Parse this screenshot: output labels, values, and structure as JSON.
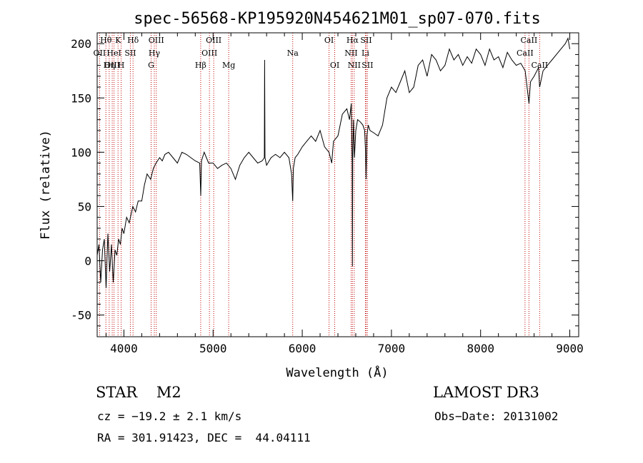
{
  "chart_data": {
    "type": "line",
    "title": "spec-56568-KP195920N454621M01_sp07-070.fits",
    "xlabel": "Wavelength (Å)",
    "ylabel": "Flux (relative)",
    "xlim": [
      3700,
      9100
    ],
    "ylim": [
      -70,
      210
    ],
    "xticks": [
      4000,
      5000,
      6000,
      7000,
      8000,
      9000
    ],
    "yticks": [
      -50,
      0,
      50,
      100,
      150,
      200
    ],
    "line_color": "#000000",
    "marker_color": "#c00000",
    "series": [
      {
        "values_note": "",
        "x": [
          3700,
          3720,
          3740,
          3760,
          3780,
          3800,
          3820,
          3840,
          3860,
          3880,
          3900,
          3920,
          3940,
          3960,
          3980,
          4000,
          4030,
          4060,
          4100,
          4130,
          4160,
          4200,
          4230,
          4260,
          4300,
          4330,
          4360,
          4400,
          4430,
          4460,
          4500,
          4550,
          4600,
          4650,
          4700,
          4750,
          4800,
          4850,
          4862,
          4870,
          4900,
          4950,
          5000,
          5050,
          5100,
          5150,
          5200,
          5250,
          5300,
          5350,
          5400,
          5450,
          5500,
          5550,
          5575,
          5578,
          5582,
          5600,
          5650,
          5700,
          5750,
          5800,
          5850,
          5880,
          5893,
          5900,
          5920,
          5950,
          6000,
          6050,
          6100,
          6150,
          6200,
          6250,
          6300,
          6330,
          6350,
          6400,
          6450,
          6500,
          6530,
          6550,
          6560,
          6563,
          6566,
          6575,
          6585,
          6600,
          6620,
          6650,
          6680,
          6700,
          6710,
          6716,
          6725,
          6740,
          6760,
          6800,
          6850,
          6900,
          6950,
          7000,
          7050,
          7100,
          7150,
          7200,
          7250,
          7300,
          7350,
          7400,
          7450,
          7500,
          7550,
          7600,
          7650,
          7700,
          7750,
          7800,
          7850,
          7900,
          7950,
          8000,
          8050,
          8100,
          8150,
          8200,
          8250,
          8300,
          8350,
          8400,
          8450,
          8500,
          8542,
          8560,
          8600,
          8650,
          8662,
          8700,
          8750,
          8800,
          8850,
          8900,
          8950,
          8980,
          9000
        ],
        "y": [
          5,
          15,
          -20,
          10,
          20,
          -25,
          25,
          -10,
          15,
          -20,
          10,
          5,
          20,
          15,
          30,
          25,
          40,
          35,
          50,
          45,
          55,
          55,
          70,
          80,
          75,
          85,
          90,
          95,
          92,
          98,
          100,
          95,
          90,
          100,
          98,
          95,
          92,
          90,
          60,
          92,
          100,
          90,
          90,
          85,
          88,
          90,
          85,
          75,
          88,
          95,
          100,
          95,
          90,
          92,
          95,
          185,
          95,
          88,
          95,
          98,
          95,
          100,
          95,
          80,
          55,
          85,
          95,
          98,
          105,
          110,
          115,
          110,
          120,
          105,
          100,
          90,
          110,
          115,
          135,
          140,
          130,
          145,
          90,
          -5,
          95,
          130,
          95,
          120,
          130,
          128,
          125,
          120,
          100,
          75,
          115,
          125,
          120,
          118,
          115,
          125,
          150,
          160,
          155,
          165,
          175,
          155,
          160,
          180,
          185,
          170,
          190,
          185,
          175,
          180,
          195,
          185,
          190,
          180,
          188,
          182,
          195,
          190,
          180,
          195,
          185,
          188,
          178,
          192,
          185,
          180,
          182,
          175,
          145,
          165,
          170,
          178,
          160,
          175,
          180,
          185,
          190,
          195,
          200,
          205,
          195
        ]
      }
    ],
    "lines": [
      {
        "name": "Hθ",
        "x": 3798,
        "row": 0
      },
      {
        "name": "OII",
        "x": 3727,
        "row": 1
      },
      {
        "name": "OIII",
        "x": 3869,
        "row": 2
      },
      {
        "name": "HeI",
        "x": 3889,
        "row": 1
      },
      {
        "name": "Hη",
        "x": 3835,
        "row": 2
      },
      {
        "name": "K",
        "x": 3934,
        "row": 0
      },
      {
        "name": "H",
        "x": 3969,
        "row": 2
      },
      {
        "name": "SII",
        "x": 4072,
        "row": 1
      },
      {
        "name": "Hδ",
        "x": 4102,
        "row": 0
      },
      {
        "name": "OIII",
        "x": 4363,
        "row": 0
      },
      {
        "name": "Hγ",
        "x": 4341,
        "row": 1
      },
      {
        "name": "G",
        "x": 4305,
        "row": 2
      },
      {
        "name": "Hβ",
        "x": 4861,
        "row": 2
      },
      {
        "name": "OIII",
        "x": 5007,
        "row": 0
      },
      {
        "name": "OIII",
        "x": 4959,
        "row": 1
      },
      {
        "name": "Mg",
        "x": 5175,
        "row": 2
      },
      {
        "name": "Na",
        "x": 5893,
        "row": 1
      },
      {
        "name": "OI",
        "x": 6300,
        "row": 0
      },
      {
        "name": "OI",
        "x": 6364,
        "row": 2
      },
      {
        "name": "Hα",
        "x": 6563,
        "row": 0
      },
      {
        "name": "NII",
        "x": 6548,
        "row": 1
      },
      {
        "name": "NII",
        "x": 6583,
        "row": 2
      },
      {
        "name": "SII",
        "x": 6716,
        "row": 0
      },
      {
        "name": "Li",
        "x": 6708,
        "row": 1
      },
      {
        "name": "SII",
        "x": 6731,
        "row": 2
      },
      {
        "name": "CaII",
        "x": 8542,
        "row": 0
      },
      {
        "name": "CaII",
        "x": 8498,
        "row": 1
      },
      {
        "name": "CaII",
        "x": 8662,
        "row": 2
      }
    ]
  },
  "info": {
    "object_class": "STAR    M2",
    "survey": "LAMOST DR3",
    "redshift": "cz = −19.2 ± 2.1 km/s",
    "obs_date": "Obs−Date: 20131002",
    "coordinates": "RA = 301.91423, DEC =  44.04111"
  }
}
